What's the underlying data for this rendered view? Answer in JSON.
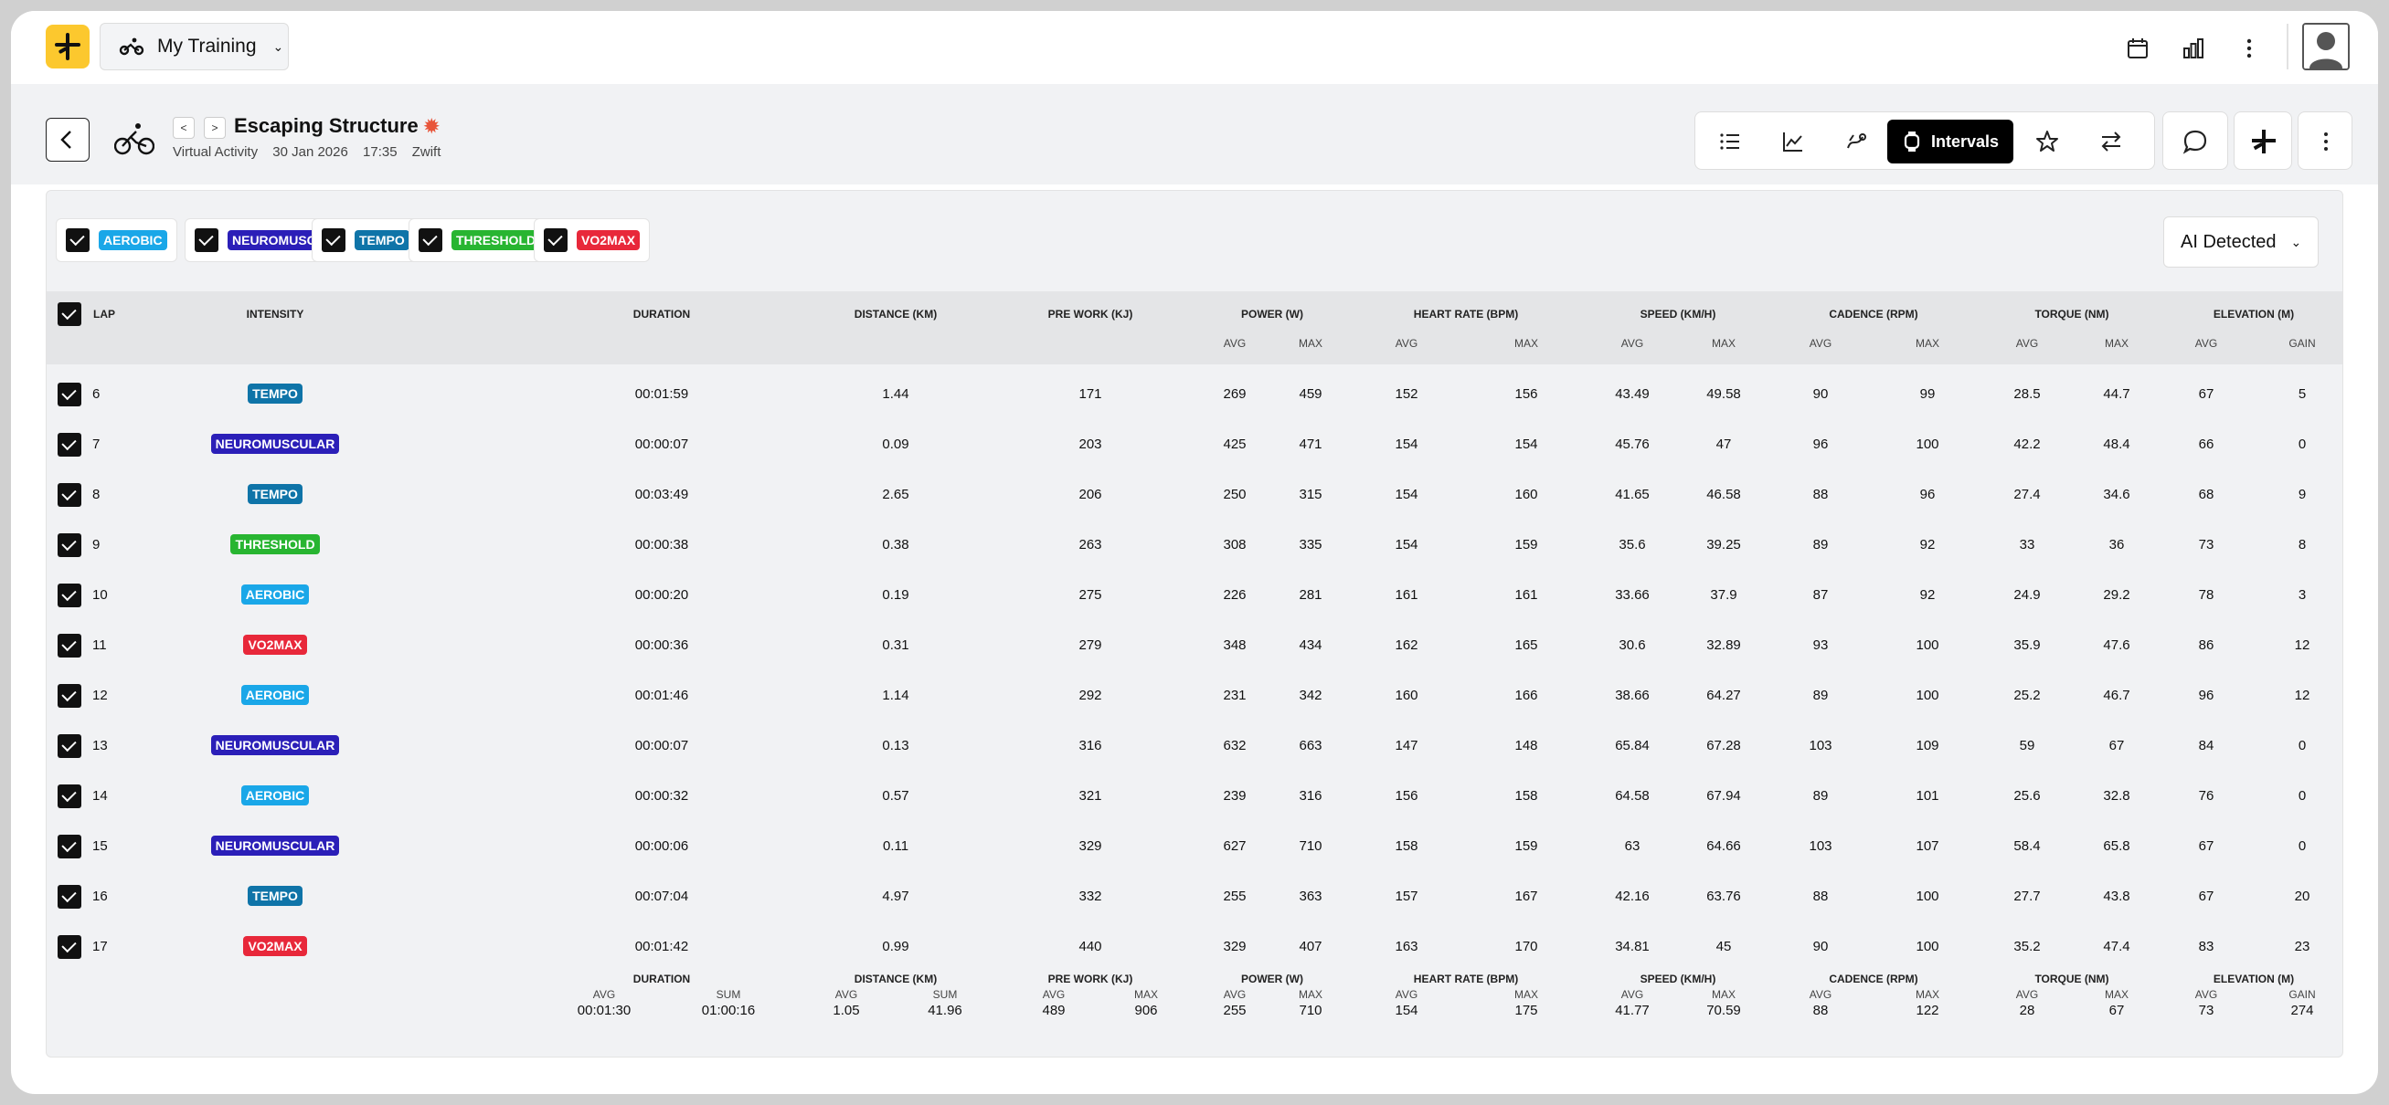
{
  "app": {
    "menu_label": "My Training"
  },
  "activity": {
    "title": "Escaping Structure",
    "type": "Virtual Activity",
    "date": "30 Jan 2026",
    "time": "17:35",
    "source": "Zwift"
  },
  "toolbar": {
    "intervals_label": "Intervals"
  },
  "filters": [
    {
      "label": "AEROBIC",
      "color": "#1aa7e8"
    },
    {
      "label": "NEUROMUSCULAR",
      "color": "#2b1fb8"
    },
    {
      "label": "TEMPO",
      "color": "#0f74a8"
    },
    {
      "label": "THRESHOLD",
      "color": "#28b531"
    },
    {
      "label": "VO2MAX",
      "color": "#e8283a"
    }
  ],
  "detection": {
    "label": "AI Detected"
  },
  "columns": {
    "lap": "LAP",
    "intensity": "INTENSITY",
    "duration": "DURATION",
    "distance": "DISTANCE (KM)",
    "prework": "PRE WORK (KJ)",
    "power": "POWER (W)",
    "hr": "HEART RATE (BPM)",
    "speed": "SPEED (KM/H)",
    "cadence": "CADENCE (RPM)",
    "torque": "TORQUE (NM)",
    "elevation": "ELEVATION (M)",
    "avg": "AVG",
    "max": "MAX",
    "gain": "GAIN",
    "sum": "SUM"
  },
  "rows": [
    {
      "lap": "6",
      "intensity": "TEMPO",
      "duration": "00:01:59",
      "distance": "1.44",
      "prework": "171",
      "p_avg": "269",
      "p_max": "459",
      "hr_avg": "152",
      "hr_max": "156",
      "s_avg": "43.49",
      "s_max": "49.58",
      "c_avg": "90",
      "c_max": "99",
      "t_avg": "28.5",
      "t_max": "44.7",
      "e_avg": "67",
      "e_gain": "5"
    },
    {
      "lap": "7",
      "intensity": "NEUROMUSCULAR",
      "duration": "00:00:07",
      "distance": "0.09",
      "prework": "203",
      "p_avg": "425",
      "p_max": "471",
      "hr_avg": "154",
      "hr_max": "154",
      "s_avg": "45.76",
      "s_max": "47",
      "c_avg": "96",
      "c_max": "100",
      "t_avg": "42.2",
      "t_max": "48.4",
      "e_avg": "66",
      "e_gain": "0"
    },
    {
      "lap": "8",
      "intensity": "TEMPO",
      "duration": "00:03:49",
      "distance": "2.65",
      "prework": "206",
      "p_avg": "250",
      "p_max": "315",
      "hr_avg": "154",
      "hr_max": "160",
      "s_avg": "41.65",
      "s_max": "46.58",
      "c_avg": "88",
      "c_max": "96",
      "t_avg": "27.4",
      "t_max": "34.6",
      "e_avg": "68",
      "e_gain": "9"
    },
    {
      "lap": "9",
      "intensity": "THRESHOLD",
      "duration": "00:00:38",
      "distance": "0.38",
      "prework": "263",
      "p_avg": "308",
      "p_max": "335",
      "hr_avg": "154",
      "hr_max": "159",
      "s_avg": "35.6",
      "s_max": "39.25",
      "c_avg": "89",
      "c_max": "92",
      "t_avg": "33",
      "t_max": "36",
      "e_avg": "73",
      "e_gain": "8"
    },
    {
      "lap": "10",
      "intensity": "AEROBIC",
      "duration": "00:00:20",
      "distance": "0.19",
      "prework": "275",
      "p_avg": "226",
      "p_max": "281",
      "hr_avg": "161",
      "hr_max": "161",
      "s_avg": "33.66",
      "s_max": "37.9",
      "c_avg": "87",
      "c_max": "92",
      "t_avg": "24.9",
      "t_max": "29.2",
      "e_avg": "78",
      "e_gain": "3"
    },
    {
      "lap": "11",
      "intensity": "VO2MAX",
      "duration": "00:00:36",
      "distance": "0.31",
      "prework": "279",
      "p_avg": "348",
      "p_max": "434",
      "hr_avg": "162",
      "hr_max": "165",
      "s_avg": "30.6",
      "s_max": "32.89",
      "c_avg": "93",
      "c_max": "100",
      "t_avg": "35.9",
      "t_max": "47.6",
      "e_avg": "86",
      "e_gain": "12"
    },
    {
      "lap": "12",
      "intensity": "AEROBIC",
      "duration": "00:01:46",
      "distance": "1.14",
      "prework": "292",
      "p_avg": "231",
      "p_max": "342",
      "hr_avg": "160",
      "hr_max": "166",
      "s_avg": "38.66",
      "s_max": "64.27",
      "c_avg": "89",
      "c_max": "100",
      "t_avg": "25.2",
      "t_max": "46.7",
      "e_avg": "96",
      "e_gain": "12"
    },
    {
      "lap": "13",
      "intensity": "NEUROMUSCULAR",
      "duration": "00:00:07",
      "distance": "0.13",
      "prework": "316",
      "p_avg": "632",
      "p_max": "663",
      "hr_avg": "147",
      "hr_max": "148",
      "s_avg": "65.84",
      "s_max": "67.28",
      "c_avg": "103",
      "c_max": "109",
      "t_avg": "59",
      "t_max": "67",
      "e_avg": "84",
      "e_gain": "0"
    },
    {
      "lap": "14",
      "intensity": "AEROBIC",
      "duration": "00:00:32",
      "distance": "0.57",
      "prework": "321",
      "p_avg": "239",
      "p_max": "316",
      "hr_avg": "156",
      "hr_max": "158",
      "s_avg": "64.58",
      "s_max": "67.94",
      "c_avg": "89",
      "c_max": "101",
      "t_avg": "25.6",
      "t_max": "32.8",
      "e_avg": "76",
      "e_gain": "0"
    },
    {
      "lap": "15",
      "intensity": "NEUROMUSCULAR",
      "duration": "00:00:06",
      "distance": "0.11",
      "prework": "329",
      "p_avg": "627",
      "p_max": "710",
      "hr_avg": "158",
      "hr_max": "159",
      "s_avg": "63",
      "s_max": "64.66",
      "c_avg": "103",
      "c_max": "107",
      "t_avg": "58.4",
      "t_max": "65.8",
      "e_avg": "67",
      "e_gain": "0"
    },
    {
      "lap": "16",
      "intensity": "TEMPO",
      "duration": "00:07:04",
      "distance": "4.97",
      "prework": "332",
      "p_avg": "255",
      "p_max": "363",
      "hr_avg": "157",
      "hr_max": "167",
      "s_avg": "42.16",
      "s_max": "63.76",
      "c_avg": "88",
      "c_max": "100",
      "t_avg": "27.7",
      "t_max": "43.8",
      "e_avg": "67",
      "e_gain": "20"
    },
    {
      "lap": "17",
      "intensity": "VO2MAX",
      "duration": "00:01:42",
      "distance": "0.99",
      "prework": "440",
      "p_avg": "329",
      "p_max": "407",
      "hr_avg": "163",
      "hr_max": "170",
      "s_avg": "34.81",
      "s_max": "45",
      "c_avg": "90",
      "c_max": "100",
      "t_avg": "35.2",
      "t_max": "47.4",
      "e_avg": "83",
      "e_gain": "23"
    }
  ],
  "totals": {
    "dur_avg": "00:01:30",
    "dur_sum": "01:00:16",
    "dist_avg": "1.05",
    "dist_sum": "41.96",
    "pw_avg": "489",
    "pw_max": "906",
    "p_avg": "255",
    "p_max": "710",
    "hr_avg": "154",
    "hr_max": "175",
    "s_avg": "41.77",
    "s_max": "70.59",
    "c_avg": "88",
    "c_max": "122",
    "t_avg": "28",
    "t_max": "67",
    "e_avg": "73",
    "e_gain": "274"
  },
  "icons": {
    "calendar": "calendar-icon",
    "chart": "bar-chart-icon",
    "more": "kebab-menu-icon",
    "list": "list-icon",
    "line": "line-chart-icon",
    "ride": "ride-icon",
    "watch": "watch-icon",
    "star": "star-icon",
    "swap": "swap-icon",
    "comment": "comment-icon",
    "logo": "logo-icon"
  }
}
